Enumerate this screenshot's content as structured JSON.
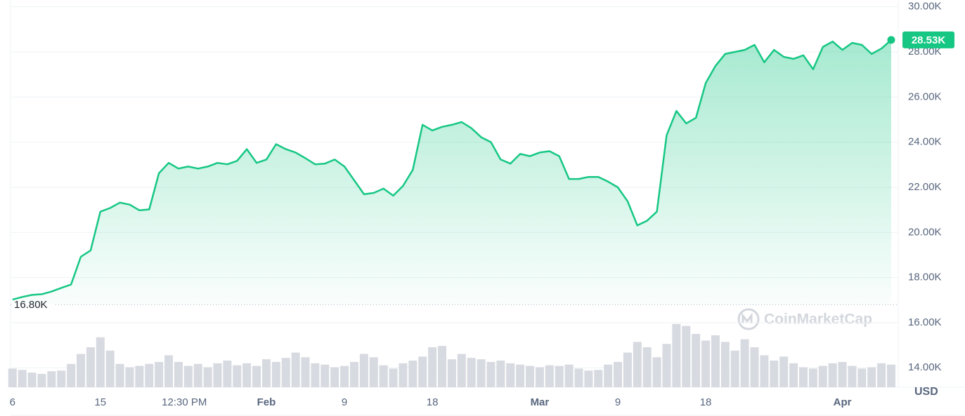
{
  "chart_data": {
    "type": "area",
    "color": "#16c784",
    "grid": true,
    "x": [
      0,
      1,
      2,
      3,
      4,
      5,
      6,
      7,
      8,
      9,
      10,
      11,
      12,
      13,
      14,
      15,
      16,
      17,
      18,
      19,
      20,
      21,
      22,
      23,
      24,
      25,
      26,
      27,
      28,
      29,
      30,
      31,
      32,
      33,
      34,
      35,
      36,
      37,
      38,
      39,
      40,
      41,
      42,
      43,
      44,
      45,
      46,
      47,
      48,
      49,
      50,
      51,
      52,
      53,
      54,
      55,
      56,
      57,
      58,
      59,
      60,
      61,
      62,
      63,
      64,
      65,
      66,
      67,
      68,
      69,
      70,
      71,
      72,
      73,
      74,
      75,
      76,
      77,
      78,
      79,
      80,
      81,
      82,
      83,
      84,
      85,
      86,
      87,
      88,
      89,
      90
    ],
    "values": [
      17020,
      17140,
      17230,
      17260,
      17380,
      17540,
      17690,
      18920,
      19200,
      20920,
      21080,
      21320,
      21230,
      20980,
      21020,
      22620,
      23080,
      22830,
      22920,
      22830,
      22920,
      23080,
      23020,
      23170,
      23690,
      23080,
      23230,
      23910,
      23690,
      23540,
      23290,
      23020,
      23050,
      23230,
      22920,
      22310,
      21690,
      21750,
      21940,
      21630,
      22060,
      22770,
      24770,
      24520,
      24680,
      24770,
      24890,
      24620,
      24220,
      24000,
      23230,
      23050,
      23480,
      23380,
      23540,
      23600,
      23380,
      22370,
      22370,
      22460,
      22460,
      22250,
      22000,
      21380,
      20310,
      20520,
      20920,
      24310,
      25380,
      24830,
      25080,
      26620,
      27380,
      27910,
      28000,
      28090,
      28310,
      27540,
      28090,
      27780,
      27690,
      27850,
      27230,
      28220,
      28460,
      28090,
      28400,
      28310,
      27910,
      28150,
      28530
    ],
    "xlim": [
      -0.2,
      90
    ],
    "xticks": [
      {
        "value": 0,
        "label": "6"
      },
      {
        "value": 9,
        "label": "15"
      },
      {
        "value": 17.6,
        "label": "12:30 PM"
      },
      {
        "value": 26,
        "label": "Feb"
      },
      {
        "value": 34,
        "label": "9"
      },
      {
        "value": 43,
        "label": "18"
      },
      {
        "value": 54,
        "label": "Mar"
      },
      {
        "value": 62,
        "label": "9"
      },
      {
        "value": 71,
        "label": "18"
      },
      {
        "value": 85,
        "label": "Apr"
      }
    ],
    "ylim": [
      13200,
      30300
    ],
    "yticks": [
      {
        "value": 14000,
        "label": "14.00K"
      },
      {
        "value": 16000,
        "label": "16.00K"
      },
      {
        "value": 18000,
        "label": "18.00K"
      },
      {
        "value": 20000,
        "label": "20.00K"
      },
      {
        "value": 22000,
        "label": "22.00K"
      },
      {
        "value": 24000,
        "label": "24.00K"
      },
      {
        "value": 26000,
        "label": "26.00K"
      },
      {
        "value": 28000,
        "label": "28.00K"
      },
      {
        "value": 30000,
        "label": "30.00K"
      }
    ],
    "y_unit": "USD",
    "open_price": {
      "value": 16800,
      "label": "16.80K"
    },
    "last_price": {
      "value": 28530,
      "label": "28.53K"
    },
    "watermark": "CoinMarketCap",
    "volume": {
      "color": "#d7dae0",
      "lim": [
        0,
        100
      ],
      "values": [
        28,
        26,
        22,
        20,
        24,
        25,
        35,
        50,
        60,
        75,
        55,
        35,
        30,
        32,
        35,
        38,
        48,
        38,
        32,
        35,
        30,
        36,
        40,
        33,
        36,
        32,
        42,
        38,
        44,
        52,
        45,
        36,
        34,
        30,
        32,
        38,
        50,
        45,
        33,
        28,
        36,
        40,
        46,
        60,
        62,
        42,
        50,
        44,
        42,
        38,
        40,
        36,
        34,
        32,
        30,
        33,
        32,
        34,
        28,
        25,
        26,
        34,
        38,
        52,
        68,
        60,
        45,
        65,
        95,
        92,
        80,
        70,
        78,
        68,
        55,
        72,
        60,
        48,
        40,
        46,
        36,
        30,
        28,
        32,
        36,
        38,
        32,
        28,
        30,
        36,
        34
      ]
    }
  }
}
